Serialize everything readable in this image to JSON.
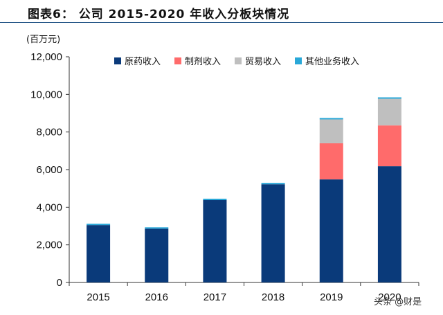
{
  "header": {
    "title": "图表6：  公司 2015-2020 年收入分板块情况",
    "unit": "(百万元)"
  },
  "watermark": "头条 @财是",
  "colors": {
    "原药收入": "#0a3a7a",
    "制剂收入": "#ff6b6b",
    "贸易收入": "#bfbfbf",
    "其他业务收入": "#29a8d8"
  },
  "chart_data": {
    "type": "bar",
    "stacked": true,
    "categories": [
      "2015",
      "2016",
      "2017",
      "2018",
      "2019",
      "2020"
    ],
    "series": [
      {
        "name": "原药收入",
        "values": [
          3050,
          2860,
          4380,
          5220,
          5480,
          6180
        ]
      },
      {
        "name": "制剂收入",
        "values": [
          0,
          0,
          0,
          0,
          1920,
          2170
        ]
      },
      {
        "name": "贸易收入",
        "values": [
          0,
          0,
          0,
          0,
          1270,
          1420
        ]
      },
      {
        "name": "其他业务收入",
        "values": [
          60,
          60,
          60,
          60,
          60,
          60
        ]
      }
    ],
    "ylim": [
      0,
      12000
    ],
    "yticks": [
      "0",
      "2,000",
      "4,000",
      "6,000",
      "8,000",
      "10,000",
      "12,000"
    ],
    "ylabel": "(百万元)",
    "legend_position": "top",
    "grid": false
  }
}
